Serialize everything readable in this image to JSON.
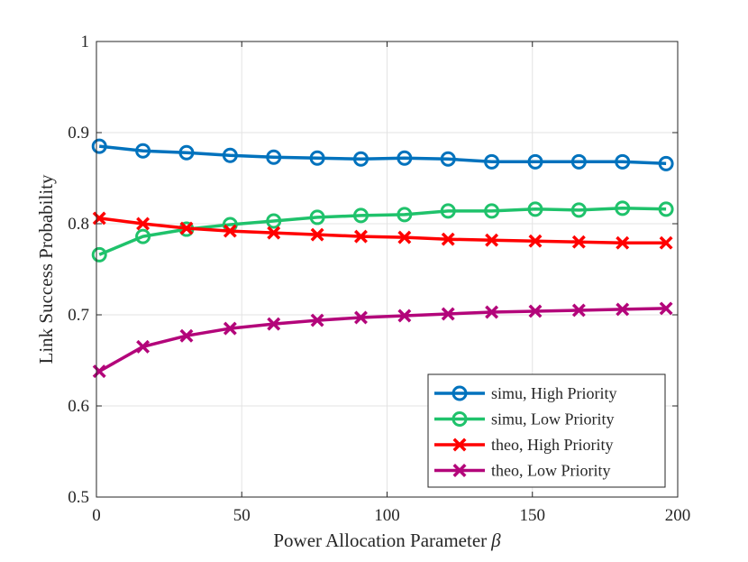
{
  "chart_data": {
    "type": "line",
    "title": "",
    "xlabel": "Power Allocation Parameter",
    "xlabel_symbol": "β",
    "ylabel": "Link Success Probability",
    "xlim": [
      0,
      200
    ],
    "ylim": [
      0.5,
      1
    ],
    "xticks": [
      0,
      50,
      100,
      150,
      200
    ],
    "xtick_labels": [
      "0",
      "50",
      "100",
      "150",
      "200"
    ],
    "yticks": [
      0.5,
      0.6,
      0.7,
      0.8,
      0.9,
      1
    ],
    "ytick_labels": [
      "0.5",
      "0.6",
      "0.7",
      "0.8",
      "0.9",
      "1"
    ],
    "grid": true,
    "legend_position": "bottom-right",
    "x": [
      1,
      16,
      31,
      46,
      61,
      76,
      91,
      106,
      121,
      136,
      151,
      166,
      181,
      196
    ],
    "series": [
      {
        "name": "simu, High Priority",
        "color": "#0072BD",
        "marker": "circle",
        "values": [
          0.885,
          0.88,
          0.878,
          0.875,
          0.873,
          0.872,
          0.871,
          0.872,
          0.871,
          0.868,
          0.868,
          0.868,
          0.868,
          0.866
        ]
      },
      {
        "name": "simu, Low Priority",
        "color": "#1FC26B",
        "marker": "circle",
        "values": [
          0.766,
          0.786,
          0.794,
          0.799,
          0.803,
          0.807,
          0.809,
          0.81,
          0.814,
          0.814,
          0.816,
          0.815,
          0.817,
          0.816
        ]
      },
      {
        "name": "theo, High Priority",
        "color": "#FF0000",
        "marker": "x",
        "values": [
          0.806,
          0.8,
          0.795,
          0.792,
          0.79,
          0.788,
          0.786,
          0.785,
          0.783,
          0.782,
          0.781,
          0.78,
          0.779,
          0.779
        ]
      },
      {
        "name": "theo, Low Priority",
        "color": "#B3057A",
        "marker": "x",
        "values": [
          0.638,
          0.665,
          0.677,
          0.685,
          0.69,
          0.694,
          0.697,
          0.699,
          0.701,
          0.703,
          0.704,
          0.705,
          0.706,
          0.707
        ]
      }
    ]
  }
}
